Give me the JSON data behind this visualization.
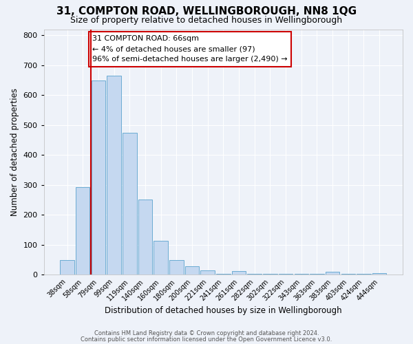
{
  "title1": "31, COMPTON ROAD, WELLINGBOROUGH, NN8 1QG",
  "title2": "Size of property relative to detached houses in Wellingborough",
  "xlabel": "Distribution of detached houses by size in Wellingborough",
  "ylabel": "Number of detached properties",
  "bar_labels": [
    "38sqm",
    "58sqm",
    "79sqm",
    "99sqm",
    "119sqm",
    "140sqm",
    "160sqm",
    "180sqm",
    "200sqm",
    "221sqm",
    "241sqm",
    "261sqm",
    "282sqm",
    "302sqm",
    "322sqm",
    "343sqm",
    "363sqm",
    "383sqm",
    "403sqm",
    "424sqm",
    "444sqm"
  ],
  "bar_values": [
    48,
    293,
    648,
    665,
    475,
    250,
    113,
    48,
    28,
    14,
    2,
    13,
    2,
    2,
    2,
    2,
    2,
    10,
    2,
    2,
    5
  ],
  "bar_color": "#c5d8f0",
  "bar_edge_color": "#6aabd2",
  "vline_color": "#cc0000",
  "annotation_text": "31 COMPTON ROAD: 66sqm\n← 4% of detached houses are smaller (97)\n96% of semi-detached houses are larger (2,490) →",
  "annotation_box_color": "#ffffff",
  "annotation_box_edge": "#cc0000",
  "ylim": [
    0,
    820
  ],
  "yticks": [
    0,
    100,
    200,
    300,
    400,
    500,
    600,
    700,
    800
  ],
  "footnote1": "Contains HM Land Registry data © Crown copyright and database right 2024.",
  "footnote2": "Contains public sector information licensed under the Open Government Licence v3.0.",
  "bg_color": "#eef2f9",
  "grid_color": "#ffffff",
  "title1_fontsize": 11,
  "title2_fontsize": 9,
  "xlabel_fontsize": 8.5,
  "ylabel_fontsize": 8.5
}
